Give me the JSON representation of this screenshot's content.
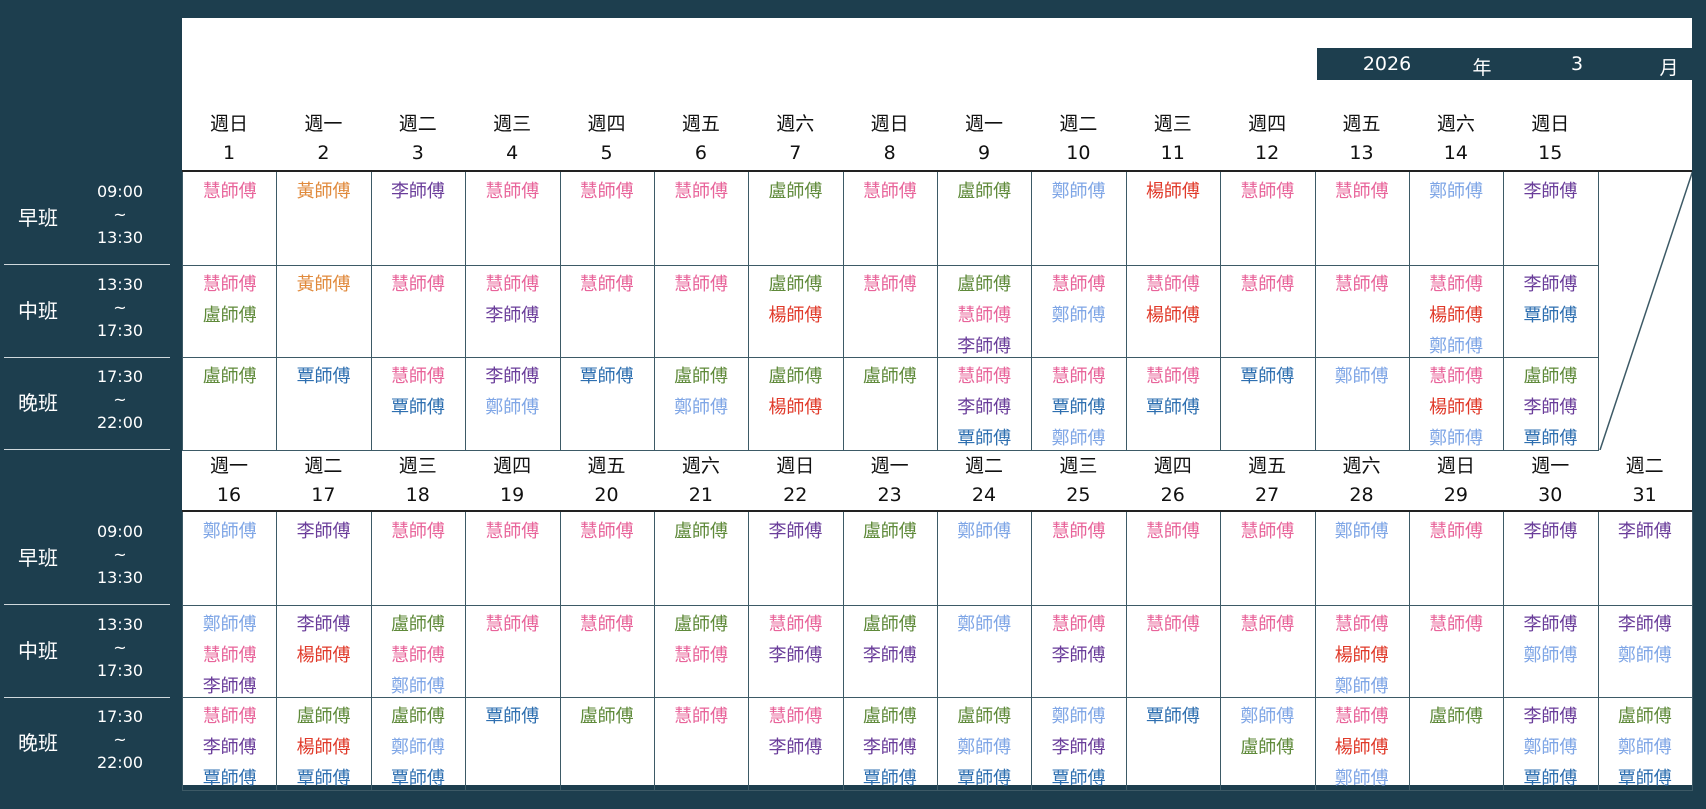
{
  "header": {
    "year": "2026",
    "year_unit": "年",
    "month": "3",
    "month_unit": "月"
  },
  "shifts": [
    {
      "name": "早班",
      "start": "09:00",
      "sep": "~",
      "end": "13:30"
    },
    {
      "name": "中班",
      "start": "13:30",
      "sep": "~",
      "end": "17:30"
    },
    {
      "name": "晚班",
      "start": "17:30",
      "sep": "~",
      "end": "22:00"
    }
  ],
  "teacher_colors": {
    "慧師傅": "#e8649a",
    "黃師傅": "#e08a3c",
    "李師傅": "#6a3d9a",
    "盧師傅": "#5f8a3a",
    "鄭師傅": "#7fa6e6",
    "覃師傅": "#2e6fb0",
    "楊師傅": "#e03a2a"
  },
  "weeks": [
    [
      {
        "weekday": "週日",
        "day": "1",
        "shifts": [
          [
            "慧師傅"
          ],
          [
            "慧師傅",
            "盧師傅"
          ],
          [
            "盧師傅"
          ]
        ]
      },
      {
        "weekday": "週一",
        "day": "2",
        "shifts": [
          [
            "黃師傅"
          ],
          [
            "黃師傅"
          ],
          [
            "覃師傅"
          ]
        ]
      },
      {
        "weekday": "週二",
        "day": "3",
        "shifts": [
          [
            "李師傅"
          ],
          [
            "慧師傅"
          ],
          [
            "慧師傅",
            "覃師傅"
          ]
        ]
      },
      {
        "weekday": "週三",
        "day": "4",
        "shifts": [
          [
            "慧師傅"
          ],
          [
            "慧師傅",
            "李師傅"
          ],
          [
            "李師傅",
            "鄭師傅"
          ]
        ]
      },
      {
        "weekday": "週四",
        "day": "5",
        "shifts": [
          [
            "慧師傅"
          ],
          [
            "慧師傅"
          ],
          [
            "覃師傅"
          ]
        ]
      },
      {
        "weekday": "週五",
        "day": "6",
        "shifts": [
          [
            "慧師傅"
          ],
          [
            "慧師傅"
          ],
          [
            "盧師傅",
            "鄭師傅"
          ]
        ]
      },
      {
        "weekday": "週六",
        "day": "7",
        "shifts": [
          [
            "盧師傅"
          ],
          [
            "盧師傅",
            "楊師傅"
          ],
          [
            "盧師傅",
            "楊師傅"
          ]
        ]
      },
      {
        "weekday": "週日",
        "day": "8",
        "shifts": [
          [
            "慧師傅"
          ],
          [
            "慧師傅"
          ],
          [
            "盧師傅"
          ]
        ]
      },
      {
        "weekday": "週一",
        "day": "9",
        "shifts": [
          [
            "盧師傅"
          ],
          [
            "盧師傅",
            "慧師傅",
            "李師傅"
          ],
          [
            "慧師傅",
            "李師傅",
            "覃師傅"
          ]
        ]
      },
      {
        "weekday": "週二",
        "day": "10",
        "shifts": [
          [
            "鄭師傅"
          ],
          [
            "慧師傅",
            "鄭師傅"
          ],
          [
            "慧師傅",
            "覃師傅",
            "鄭師傅"
          ]
        ]
      },
      {
        "weekday": "週三",
        "day": "11",
        "shifts": [
          [
            "楊師傅"
          ],
          [
            "慧師傅",
            "楊師傅"
          ],
          [
            "慧師傅",
            "覃師傅"
          ]
        ]
      },
      {
        "weekday": "週四",
        "day": "12",
        "shifts": [
          [
            "慧師傅"
          ],
          [
            "慧師傅"
          ],
          [
            "覃師傅"
          ]
        ]
      },
      {
        "weekday": "週五",
        "day": "13",
        "shifts": [
          [
            "慧師傅"
          ],
          [
            "慧師傅"
          ],
          [
            "鄭師傅"
          ]
        ]
      },
      {
        "weekday": "週六",
        "day": "14",
        "shifts": [
          [
            "鄭師傅"
          ],
          [
            "慧師傅",
            "楊師傅",
            "鄭師傅"
          ],
          [
            "慧師傅",
            "楊師傅",
            "鄭師傅"
          ]
        ]
      },
      {
        "weekday": "週日",
        "day": "15",
        "shifts": [
          [
            "李師傅"
          ],
          [
            "李師傅",
            "覃師傅"
          ],
          [
            "盧師傅",
            "李師傅",
            "覃師傅"
          ]
        ]
      }
    ],
    [
      {
        "weekday": "週一",
        "day": "16",
        "shifts": [
          [
            "鄭師傅"
          ],
          [
            "鄭師傅",
            "慧師傅",
            "李師傅"
          ],
          [
            "慧師傅",
            "李師傅",
            "覃師傅"
          ]
        ]
      },
      {
        "weekday": "週二",
        "day": "17",
        "shifts": [
          [
            "李師傅"
          ],
          [
            "李師傅",
            "楊師傅"
          ],
          [
            "盧師傅",
            "楊師傅",
            "覃師傅"
          ]
        ]
      },
      {
        "weekday": "週三",
        "day": "18",
        "shifts": [
          [
            "慧師傅"
          ],
          [
            "盧師傅",
            "慧師傅",
            "鄭師傅"
          ],
          [
            "盧師傅",
            "鄭師傅",
            "覃師傅"
          ]
        ]
      },
      {
        "weekday": "週四",
        "day": "19",
        "shifts": [
          [
            "慧師傅"
          ],
          [
            "慧師傅"
          ],
          [
            "覃師傅"
          ]
        ]
      },
      {
        "weekday": "週五",
        "day": "20",
        "shifts": [
          [
            "慧師傅"
          ],
          [
            "慧師傅"
          ],
          [
            "盧師傅"
          ]
        ]
      },
      {
        "weekday": "週六",
        "day": "21",
        "shifts": [
          [
            "盧師傅"
          ],
          [
            "盧師傅",
            "慧師傅"
          ],
          [
            "慧師傅"
          ]
        ]
      },
      {
        "weekday": "週日",
        "day": "22",
        "shifts": [
          [
            "李師傅"
          ],
          [
            "慧師傅",
            "李師傅"
          ],
          [
            "慧師傅",
            "李師傅"
          ]
        ]
      },
      {
        "weekday": "週一",
        "day": "23",
        "shifts": [
          [
            "盧師傅"
          ],
          [
            "盧師傅",
            "李師傅"
          ],
          [
            "盧師傅",
            "李師傅",
            "覃師傅"
          ]
        ]
      },
      {
        "weekday": "週二",
        "day": "24",
        "shifts": [
          [
            "鄭師傅"
          ],
          [
            "鄭師傅"
          ],
          [
            "盧師傅",
            "鄭師傅",
            "覃師傅"
          ]
        ]
      },
      {
        "weekday": "週三",
        "day": "25",
        "shifts": [
          [
            "慧師傅"
          ],
          [
            "慧師傅",
            "李師傅"
          ],
          [
            "鄭師傅",
            "李師傅",
            "覃師傅"
          ]
        ]
      },
      {
        "weekday": "週四",
        "day": "26",
        "shifts": [
          [
            "慧師傅"
          ],
          [
            "慧師傅"
          ],
          [
            "覃師傅"
          ]
        ]
      },
      {
        "weekday": "週五",
        "day": "27",
        "shifts": [
          [
            "慧師傅"
          ],
          [
            "慧師傅"
          ],
          [
            "鄭師傅",
            "盧師傅"
          ]
        ]
      },
      {
        "weekday": "週六",
        "day": "28",
        "shifts": [
          [
            "鄭師傅"
          ],
          [
            "慧師傅",
            "楊師傅",
            "鄭師傅"
          ],
          [
            "慧師傅",
            "楊師傅",
            "鄭師傅"
          ]
        ]
      },
      {
        "weekday": "週日",
        "day": "29",
        "shifts": [
          [
            "慧師傅"
          ],
          [
            "慧師傅"
          ],
          [
            "盧師傅"
          ]
        ]
      },
      {
        "weekday": "週一",
        "day": "30",
        "shifts": [
          [
            "李師傅"
          ],
          [
            "李師傅",
            "鄭師傅"
          ],
          [
            "李師傅",
            "鄭師傅",
            "覃師傅"
          ]
        ]
      },
      {
        "weekday": "週二",
        "day": "31",
        "shifts": [
          [
            "李師傅"
          ],
          [
            "李師傅",
            "鄭師傅"
          ],
          [
            "盧師傅",
            "鄭師傅",
            "覃師傅"
          ]
        ]
      }
    ]
  ]
}
